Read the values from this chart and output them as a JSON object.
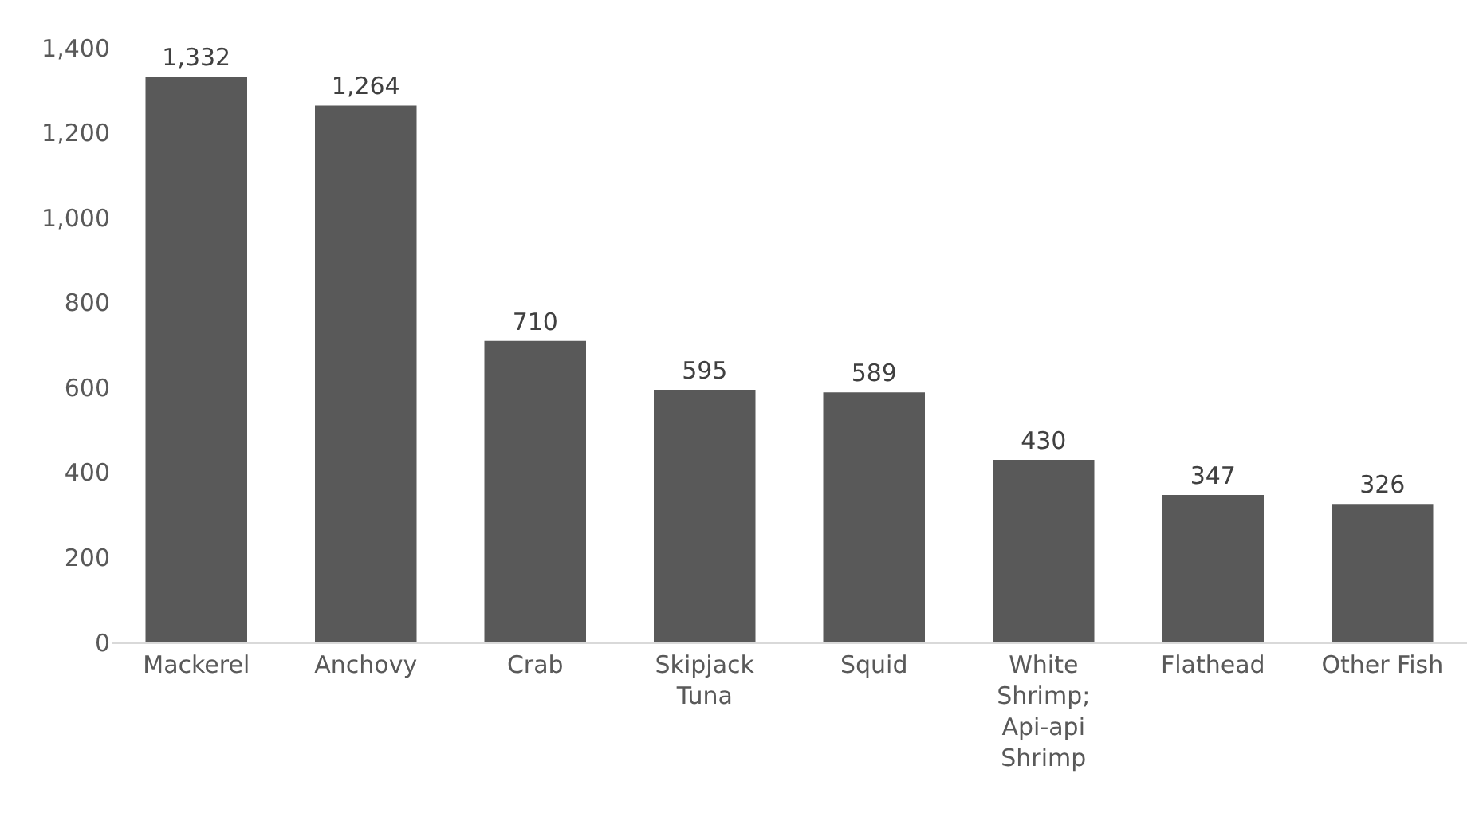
{
  "chart_data": {
    "type": "bar",
    "categories": [
      "Mackerel",
      "Anchovy",
      "Crab",
      "Skipjack Tuna",
      "Squid",
      "White Shrimp; Api-api Shrimp",
      "Flathead",
      "Other Fish"
    ],
    "values": [
      1332,
      1264,
      710,
      595,
      589,
      430,
      347,
      326
    ],
    "value_labels": [
      "1,332",
      "1,264",
      "710",
      "595",
      "589",
      "430",
      "347",
      "326"
    ],
    "color": "#595959",
    "ylim": [
      0,
      1400
    ],
    "yticks": [
      0,
      {
        "value": 200,
        "label": "200"
      },
      {
        "value": 400,
        "label": "400"
      },
      {
        "value": 600,
        "label": "600"
      },
      {
        "value": 800,
        "label": "800"
      },
      {
        "value": 1000,
        "label": "1,000"
      },
      {
        "value": 1200,
        "label": "1,200"
      },
      {
        "value": 1400,
        "label": "1,400"
      }
    ],
    "grid": false
  }
}
